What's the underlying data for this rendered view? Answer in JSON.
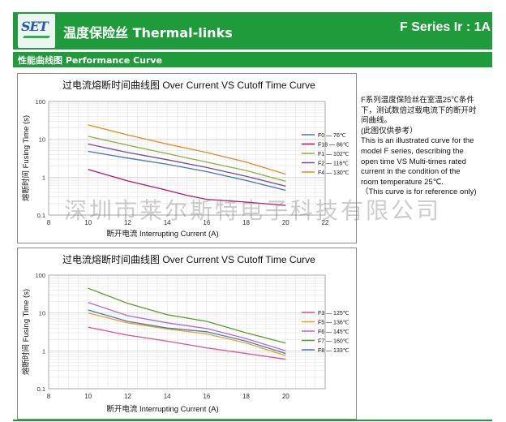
{
  "header": {
    "logo_text": "SET",
    "title": "温度保险丝  Thermal-links",
    "series_label": "F Series Ir : 1A",
    "subtitle": "性能曲线图  Performance Curve",
    "colors": {
      "brand_green": "#1f9b3c",
      "logo_blue": "#2b55b8"
    }
  },
  "description": {
    "lines": [
      "F系列温度保险丝在室温25℃条件",
      "下，测试数倍过载电流下的断开时",
      "间曲线。",
      "(此图仅供参考）",
      "This is an illustrated curve for the",
      "model F series, describing the",
      "open time  VS Multi-times rated",
      "current in the condition of the",
      "room temperature 25℃.",
      "（This curve is for reference only)"
    ]
  },
  "watermark": "深圳市莱尔斯特电子科技有限公司",
  "chart_data": [
    {
      "type": "line",
      "title": "过电流熔断时间曲线图  Over Current VS Cutoff Time Curve",
      "xlabel": "断开电流  Interrupting Current (A)",
      "ylabel": "熔断时间  Fusing Time (s)",
      "xlim": [
        8,
        22
      ],
      "ylim": [
        0.1,
        100
      ],
      "yscale": "log",
      "xticks": [
        "8",
        "10",
        "12",
        "14",
        "16",
        "18",
        "20",
        "22"
      ],
      "yticks": [
        "0.1",
        "1",
        "10",
        "100"
      ],
      "grid": true,
      "legend_position": "right",
      "series": [
        {
          "name": "F0 — 76℃",
          "color": "#4472c4",
          "points": [
            [
              10,
              4.8
            ],
            [
              12,
              3.2
            ],
            [
              14,
              2.2
            ],
            [
              16,
              1.4
            ],
            [
              18,
              0.82
            ],
            [
              20,
              0.45
            ]
          ]
        },
        {
          "name": "F18 — 86℃",
          "color": "#b0186c",
          "points": [
            [
              10,
              1.6
            ],
            [
              12,
              0.8
            ],
            [
              14,
              0.45
            ],
            [
              15,
              0.33
            ],
            [
              16,
              0.26
            ],
            [
              18,
              0.22
            ],
            [
              20,
              0.18
            ]
          ]
        },
        {
          "name": "F1 — 102℃",
          "color": "#86b23a",
          "points": [
            [
              10,
              12
            ],
            [
              12,
              7
            ],
            [
              14,
              4.2
            ],
            [
              16,
              2.5
            ],
            [
              18,
              1.5
            ],
            [
              20,
              0.78
            ]
          ]
        },
        {
          "name": "F2 — 116℃",
          "color": "#6a4c9c",
          "points": [
            [
              10,
              7.5
            ],
            [
              12,
              4.5
            ],
            [
              14,
              2.9
            ],
            [
              16,
              1.8
            ],
            [
              18,
              1.05
            ],
            [
              20,
              0.58
            ]
          ]
        },
        {
          "name": "F4 — 130℃",
          "color": "#e8861e",
          "points": [
            [
              10,
              24
            ],
            [
              12,
              13
            ],
            [
              14,
              7.5
            ],
            [
              16,
              4.5
            ],
            [
              18,
              2.5
            ],
            [
              20,
              1.2
            ]
          ]
        }
      ]
    },
    {
      "type": "line",
      "title": "过电流熔断时间曲线图  Over Current VS Cutoff Time Curve",
      "xlabel": "断开电流  Interrupting Current (A)",
      "ylabel": "熔断时间  Fusing Time (s)",
      "xlim": [
        8,
        22
      ],
      "ylim": [
        0.1,
        100
      ],
      "yscale": "log",
      "xticks": [
        "8",
        "10",
        "12",
        "14",
        "16",
        "18",
        "20"
      ],
      "yticks": [
        "0.1",
        "1",
        "10",
        "100"
      ],
      "grid": true,
      "legend_position": "right",
      "series": [
        {
          "name": "F3 — 125℃",
          "color": "#e0508f",
          "points": [
            [
              10,
              4.2
            ],
            [
              12,
              2.6
            ],
            [
              14,
              1.8
            ],
            [
              16,
              1.2
            ],
            [
              18,
              0.85
            ],
            [
              20,
              0.6
            ]
          ]
        },
        {
          "name": "F5 — 136℃",
          "color": "#e8a020",
          "points": [
            [
              10,
              10
            ],
            [
              12,
              5.5
            ],
            [
              14,
              3.8
            ],
            [
              16,
              2.8
            ],
            [
              18,
              1.6
            ],
            [
              20,
              0.75
            ]
          ]
        },
        {
          "name": "F6 — 145℃",
          "color": "#a86ed8",
          "points": [
            [
              10,
              19
            ],
            [
              12,
              8.5
            ],
            [
              14,
              5.5
            ],
            [
              16,
              3.9
            ],
            [
              18,
              2.1
            ],
            [
              20,
              1.0
            ]
          ]
        },
        {
          "name": "F7 — 160℃",
          "color": "#5a9a2c",
          "points": [
            [
              10,
              45
            ],
            [
              12,
              18
            ],
            [
              14,
              9
            ],
            [
              16,
              6
            ],
            [
              18,
              3
            ],
            [
              20,
              1.6
            ]
          ]
        },
        {
          "name": "F8 — 133℃",
          "color": "#4a78c0",
          "points": [
            [
              10,
              12
            ],
            [
              12,
              6
            ],
            [
              14,
              4
            ],
            [
              16,
              3.2
            ],
            [
              18,
              1.8
            ],
            [
              20,
              0.85
            ]
          ]
        }
      ]
    }
  ]
}
